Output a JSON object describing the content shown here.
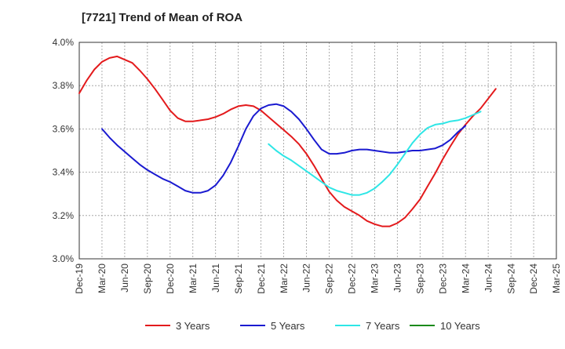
{
  "chart_data": {
    "type": "line",
    "title": "[7721]  Trend of Mean of ROA",
    "x_ticks": [
      "Dec-19",
      "Mar-20",
      "Jun-20",
      "Sep-20",
      "Dec-20",
      "Mar-21",
      "Jun-21",
      "Sep-21",
      "Dec-21",
      "Mar-22",
      "Jun-22",
      "Sep-22",
      "Dec-22",
      "Mar-23",
      "Jun-23",
      "Sep-23",
      "Dec-23",
      "Mar-24",
      "Jun-24",
      "Sep-24",
      "Dec-24",
      "Mar-25"
    ],
    "y_ticks": [
      "3.0%",
      "3.2%",
      "3.4%",
      "3.6%",
      "3.8%",
      "4.0%"
    ],
    "ylim": [
      3.0,
      4.0
    ],
    "y_unit": "%",
    "grid": {
      "vertical": "dashed",
      "horizontal": "dashed"
    },
    "legend_position": "bottom",
    "series": [
      {
        "name": "3 Years",
        "color": "#e31a1c",
        "start_index": 0,
        "values": [
          3.765,
          3.825,
          3.875,
          3.91,
          3.928,
          3.935,
          3.92,
          3.905,
          3.87,
          3.83,
          3.785,
          3.735,
          3.685,
          3.65,
          3.635,
          3.635,
          3.64,
          3.645,
          3.655,
          3.67,
          3.69,
          3.705,
          3.71,
          3.705,
          3.685,
          3.655,
          3.625,
          3.595,
          3.565,
          3.53,
          3.485,
          3.43,
          3.37,
          3.31,
          3.27,
          3.24,
          3.22,
          3.2,
          3.175,
          3.16,
          3.15,
          3.15,
          3.165,
          3.19,
          3.23,
          3.275,
          3.335,
          3.395,
          3.46,
          3.52,
          3.575,
          3.62,
          3.66,
          3.695,
          3.74,
          3.785
        ]
      },
      {
        "name": "5 Years",
        "color": "#1a1ad0",
        "start_index": 3,
        "values": [
          3.6,
          3.56,
          3.525,
          3.495,
          3.465,
          3.435,
          3.41,
          3.39,
          3.37,
          3.355,
          3.335,
          3.315,
          3.305,
          3.305,
          3.315,
          3.34,
          3.385,
          3.445,
          3.52,
          3.6,
          3.66,
          3.695,
          3.71,
          3.715,
          3.705,
          3.68,
          3.645,
          3.6,
          3.55,
          3.505,
          3.485,
          3.485,
          3.49,
          3.5,
          3.505,
          3.505,
          3.5,
          3.495,
          3.49,
          3.49,
          3.495,
          3.5,
          3.5,
          3.505,
          3.51,
          3.525,
          3.55,
          3.585,
          3.615
        ]
      },
      {
        "name": "7 Years",
        "color": "#2ee6e6",
        "start_index": 25,
        "values": [
          3.53,
          3.5,
          3.475,
          3.455,
          3.43,
          3.405,
          3.38,
          3.355,
          3.33,
          3.315,
          3.305,
          3.295,
          3.295,
          3.305,
          3.325,
          3.355,
          3.39,
          3.435,
          3.485,
          3.535,
          3.575,
          3.605,
          3.62,
          3.625,
          3.635,
          3.64,
          3.65,
          3.665,
          3.68
        ]
      },
      {
        "name": "10 Years",
        "color": "#1a8a1a",
        "start_index": 0,
        "values": []
      }
    ]
  }
}
